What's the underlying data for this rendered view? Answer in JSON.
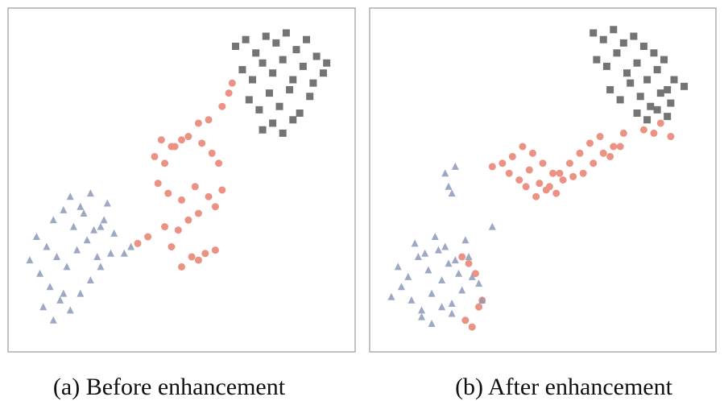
{
  "chart_data": [
    {
      "type": "scatter",
      "title": "(a) Before enhancement",
      "xlim": [
        0,
        100
      ],
      "ylim": [
        0,
        100
      ],
      "series": [
        {
          "color": "#5c5c5c",
          "marker": "square",
          "x": [
            66,
            69,
            72,
            75,
            78,
            81,
            84,
            87,
            90,
            93,
            68,
            71,
            74,
            77,
            80,
            83,
            86,
            89,
            92,
            70,
            73,
            76,
            79,
            82,
            85,
            88,
            74,
            77,
            80,
            83
          ],
          "y": [
            90,
            92,
            88,
            93,
            91,
            94,
            89,
            92,
            87,
            85,
            83,
            80,
            85,
            82,
            86,
            80,
            84,
            79,
            82,
            74,
            71,
            76,
            72,
            77,
            70,
            75,
            65,
            67,
            64,
            68
          ]
        },
        {
          "color": "#e8806f",
          "marker": "circle",
          "x": [
            65,
            64,
            62,
            58,
            55,
            50,
            47,
            44,
            42,
            45,
            48,
            52,
            56,
            59,
            61,
            43,
            46,
            50,
            54,
            58,
            60,
            62,
            55,
            52,
            49,
            47,
            53,
            57,
            40,
            37,
            45,
            50,
            55,
            60
          ],
          "y": [
            79,
            76,
            72,
            68,
            67,
            62,
            60,
            62,
            57,
            55,
            60,
            63,
            61,
            58,
            55,
            49,
            46,
            44,
            48,
            45,
            42,
            47,
            40,
            38,
            35,
            30,
            27,
            28,
            33,
            31,
            36,
            24,
            26,
            29
          ]
        },
        {
          "color": "#8e9aba",
          "marker": "triangle",
          "x": [
            5,
            8,
            11,
            14,
            17,
            20,
            23,
            26,
            29,
            7,
            10,
            13,
            16,
            19,
            22,
            25,
            12,
            15,
            18,
            21,
            24,
            27,
            30,
            17,
            20,
            23,
            26,
            9,
            12,
            15,
            33,
            35,
            28
          ],
          "y": [
            26,
            22,
            18,
            14,
            11,
            16,
            20,
            24,
            28,
            33,
            30,
            27,
            24,
            29,
            32,
            27,
            38,
            41,
            36,
            40,
            35,
            38,
            34,
            45,
            42,
            46,
            36,
            12,
            8,
            16,
            28,
            30,
            43
          ]
        }
      ]
    },
    {
      "type": "scatter",
      "title": "(b) After enhancement",
      "xlim": [
        0,
        100
      ],
      "ylim": [
        0,
        100
      ],
      "series": [
        {
          "color": "#5c5c5c",
          "marker": "square",
          "x": [
            65,
            68,
            71,
            74,
            77,
            80,
            83,
            86,
            89,
            66,
            69,
            72,
            75,
            78,
            81,
            84,
            87,
            92,
            70,
            73,
            76,
            79,
            82,
            85,
            88,
            78,
            81,
            84,
            87
          ],
          "y": [
            94,
            92,
            95,
            91,
            93,
            90,
            88,
            86,
            80,
            86,
            84,
            88,
            82,
            85,
            80,
            83,
            77,
            78,
            77,
            74,
            79,
            75,
            72,
            76,
            73,
            70,
            68,
            71,
            69
          ]
        },
        {
          "color": "#e8806f",
          "marker": "circle",
          "x": [
            35,
            38,
            41,
            44,
            47,
            50,
            53,
            56,
            59,
            62,
            65,
            68,
            71,
            74,
            40,
            43,
            46,
            49,
            52,
            55,
            58,
            61,
            64,
            67,
            70,
            73,
            45,
            48,
            51,
            54,
            80,
            83,
            85,
            88,
            26,
            28,
            30,
            31,
            27,
            29,
            32
          ],
          "y": [
            54,
            55,
            57,
            60,
            58,
            55,
            52,
            50,
            51,
            52,
            55,
            58,
            60,
            64,
            52,
            50,
            53,
            49,
            48,
            52,
            55,
            58,
            61,
            63,
            57,
            60,
            48,
            45,
            47,
            46,
            65,
            64,
            67,
            63,
            27,
            25,
            22,
            12,
            8,
            6,
            14
          ]
        },
        {
          "color": "#8e9aba",
          "marker": "triangle",
          "x": [
            5,
            8,
            11,
            14,
            17,
            20,
            23,
            26,
            29,
            32,
            7,
            10,
            13,
            16,
            19,
            22,
            25,
            28,
            31,
            12,
            15,
            18,
            21,
            24,
            27,
            14,
            17,
            20,
            23,
            35,
            21,
            22,
            23,
            24
          ],
          "y": [
            15,
            18,
            14,
            11,
            16,
            20,
            13,
            17,
            21,
            14,
            24,
            21,
            27,
            23,
            29,
            25,
            22,
            27,
            19,
            31,
            28,
            33,
            30,
            26,
            32,
            9,
            7,
            12,
            10,
            36,
            52,
            48,
            46,
            54
          ]
        }
      ]
    }
  ]
}
